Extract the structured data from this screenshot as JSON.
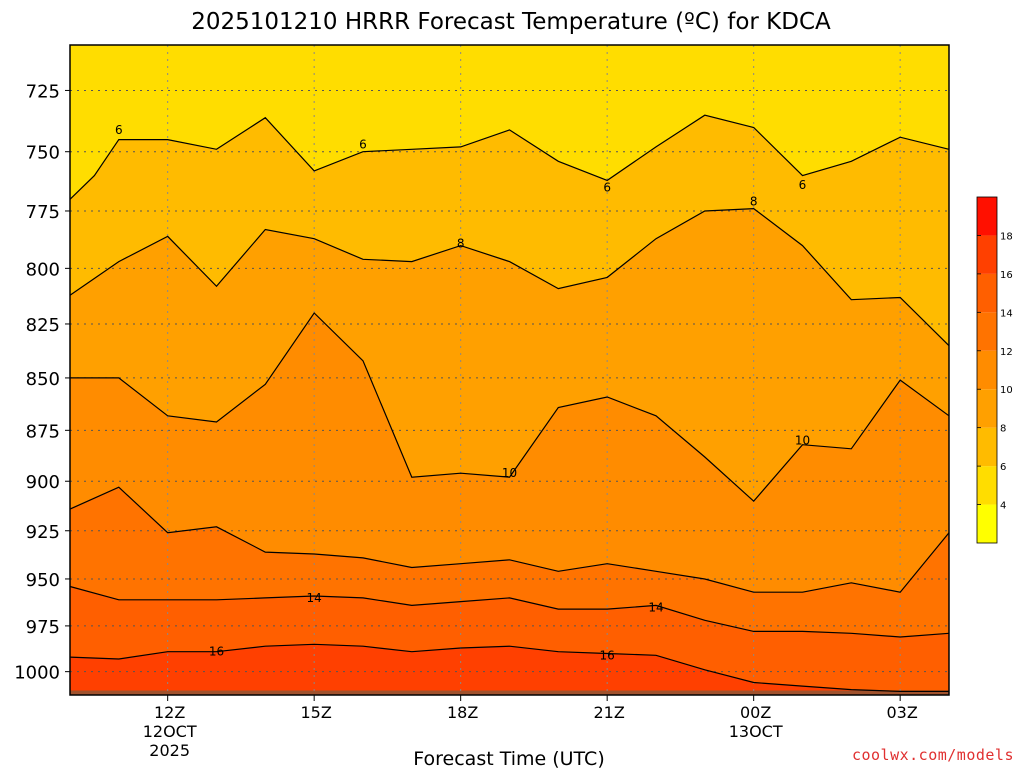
{
  "chart_data": {
    "type": "heatmap",
    "title": "2025101210 HRRR Forecast Temperature (ºC) for KDCA",
    "xlabel": "Forecast Time (UTC)",
    "ylabel": "",
    "x_ticks": [
      {
        "hour": 12,
        "lines": [
          "12Z",
          "12OCT",
          "2025"
        ]
      },
      {
        "hour": 15,
        "lines": [
          "15Z"
        ]
      },
      {
        "hour": 18,
        "lines": [
          "18Z"
        ]
      },
      {
        "hour": 21,
        "lines": [
          "21Z"
        ]
      },
      {
        "hour": 24,
        "lines": [
          "00Z",
          "13OCT"
        ]
      },
      {
        "hour": 27,
        "lines": [
          "03Z"
        ]
      }
    ],
    "xlim": [
      10,
      28
    ],
    "y_ticks": [
      725,
      750,
      775,
      800,
      825,
      850,
      875,
      900,
      925,
      950,
      975,
      1000
    ],
    "ylim": [
      707,
      1013
    ],
    "y_scale": "log",
    "grid": true,
    "colorbar": {
      "levels": [
        2,
        4,
        6,
        8,
        10,
        12,
        14,
        16,
        18,
        20
      ],
      "tick_labels": [
        4,
        6,
        8,
        10,
        12,
        14,
        16,
        18
      ],
      "colors": [
        "#ffff00",
        "#ffdd00",
        "#ffbb00",
        "#ffa000",
        "#ff8c00",
        "#ff7300",
        "#ff5f00",
        "#ff4000",
        "#ff1000"
      ]
    },
    "contours": [
      {
        "level": 6,
        "points": [
          [
            10,
            770
          ],
          [
            10.5,
            760
          ],
          [
            11,
            745
          ],
          [
            12,
            745
          ],
          [
            13,
            749
          ],
          [
            14,
            736
          ],
          [
            15,
            758
          ],
          [
            16,
            750
          ],
          [
            17,
            749
          ],
          [
            18,
            748
          ],
          [
            19,
            741
          ],
          [
            20,
            754
          ],
          [
            21,
            762
          ],
          [
            22,
            748
          ],
          [
            23,
            735
          ],
          [
            24,
            740
          ],
          [
            25,
            760
          ],
          [
            26,
            754
          ],
          [
            27,
            744
          ],
          [
            28,
            749
          ]
        ],
        "labels": [
          [
            11,
            741
          ],
          [
            16,
            747
          ],
          [
            21,
            765
          ],
          [
            25,
            764
          ]
        ]
      },
      {
        "level": 8,
        "points": [
          [
            10,
            812
          ],
          [
            11,
            797
          ],
          [
            12,
            786
          ],
          [
            13,
            808
          ],
          [
            14,
            783
          ],
          [
            15,
            787
          ],
          [
            16,
            796
          ],
          [
            17,
            797
          ],
          [
            18,
            790
          ],
          [
            19,
            797
          ],
          [
            20,
            809
          ],
          [
            21,
            804
          ],
          [
            22,
            787
          ],
          [
            23,
            775
          ],
          [
            24,
            774
          ],
          [
            25,
            790
          ],
          [
            26,
            814
          ],
          [
            27,
            813
          ],
          [
            28,
            835
          ]
        ],
        "labels": [
          [
            18,
            789
          ],
          [
            24,
            771
          ]
        ]
      },
      {
        "level": 10,
        "points": [
          [
            10,
            850
          ],
          [
            11,
            850
          ],
          [
            12,
            868
          ],
          [
            13,
            871
          ],
          [
            14,
            853
          ],
          [
            15,
            820
          ],
          [
            16,
            842
          ],
          [
            17,
            898
          ],
          [
            18,
            896
          ],
          [
            19,
            898
          ],
          [
            20,
            864
          ],
          [
            21,
            859
          ],
          [
            22,
            868
          ],
          [
            23,
            888
          ],
          [
            24,
            910
          ],
          [
            25,
            882
          ],
          [
            26,
            884
          ],
          [
            27,
            851
          ],
          [
            28,
            868
          ]
        ],
        "labels": [
          [
            19,
            896
          ],
          [
            25,
            880
          ]
        ]
      },
      {
        "level": 12,
        "points": [
          [
            10,
            914
          ],
          [
            11,
            903
          ],
          [
            12,
            926
          ],
          [
            13,
            923
          ],
          [
            14,
            936
          ],
          [
            15,
            937
          ],
          [
            16,
            939
          ],
          [
            17,
            944
          ],
          [
            18,
            942
          ],
          [
            19,
            940
          ],
          [
            20,
            946
          ],
          [
            21,
            942
          ],
          [
            22,
            946
          ],
          [
            23,
            950
          ],
          [
            24,
            957
          ],
          [
            25,
            957
          ],
          [
            26,
            952
          ],
          [
            27,
            957
          ],
          [
            28,
            926
          ]
        ],
        "labels": []
      },
      {
        "level": 14,
        "points": [
          [
            10,
            954
          ],
          [
            11,
            961
          ],
          [
            12,
            961
          ],
          [
            13,
            961
          ],
          [
            14,
            960
          ],
          [
            15,
            959
          ],
          [
            16,
            960
          ],
          [
            17,
            964
          ],
          [
            18,
            962
          ],
          [
            19,
            960
          ],
          [
            20,
            966
          ],
          [
            21,
            966
          ],
          [
            22,
            964
          ],
          [
            23,
            972
          ],
          [
            24,
            978
          ],
          [
            25,
            978
          ],
          [
            26,
            979
          ],
          [
            27,
            981
          ],
          [
            28,
            979
          ]
        ],
        "labels": [
          [
            15,
            960
          ],
          [
            22,
            965
          ]
        ]
      },
      {
        "level": 16,
        "points": [
          [
            10,
            992
          ],
          [
            11,
            993
          ],
          [
            12,
            989
          ],
          [
            13,
            989
          ],
          [
            14,
            986
          ],
          [
            15,
            985
          ],
          [
            16,
            986
          ],
          [
            17,
            989
          ],
          [
            18,
            987
          ],
          [
            19,
            986
          ],
          [
            20,
            989
          ],
          [
            21,
            990
          ],
          [
            22,
            991
          ],
          [
            23,
            999
          ],
          [
            24,
            1006
          ],
          [
            25,
            1008
          ],
          [
            26,
            1010
          ],
          [
            27,
            1011
          ],
          [
            28,
            1011
          ]
        ],
        "labels": [
          [
            13,
            989
          ],
          [
            21,
            991
          ]
        ]
      }
    ],
    "contour_labels": [
      6,
      8,
      10,
      14,
      16
    ],
    "underground_color": "#a0522d",
    "underground_pressure": 1013
  },
  "credit": "coolwx.com/models"
}
